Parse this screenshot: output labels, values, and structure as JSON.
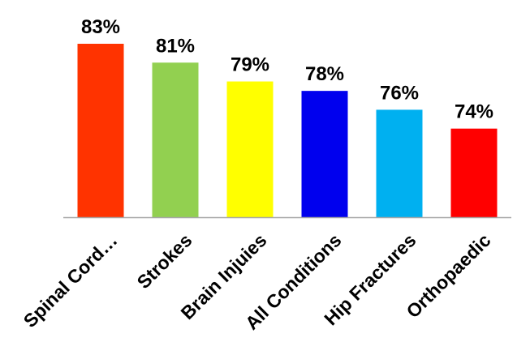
{
  "chart_data": {
    "type": "bar",
    "categories": [
      "Spinal Cord…",
      "Strokes",
      "Brain Injuies",
      "All Conditions",
      "Hip Fractures",
      "Orthopaedic"
    ],
    "values": [
      83,
      81,
      79,
      78,
      76,
      74
    ],
    "value_labels": [
      "83%",
      "81%",
      "79%",
      "78%",
      "76%",
      "74%"
    ],
    "colors": [
      "#ff3300",
      "#92d050",
      "#ffff00",
      "#0000ee",
      "#00b0f0",
      "#ff0000"
    ],
    "axis_color": "#a6a6a6",
    "title": "",
    "xlabel": "",
    "ylabel": "",
    "ylim": [
      64.6,
      83
    ],
    "grid": false,
    "legend": "none"
  }
}
